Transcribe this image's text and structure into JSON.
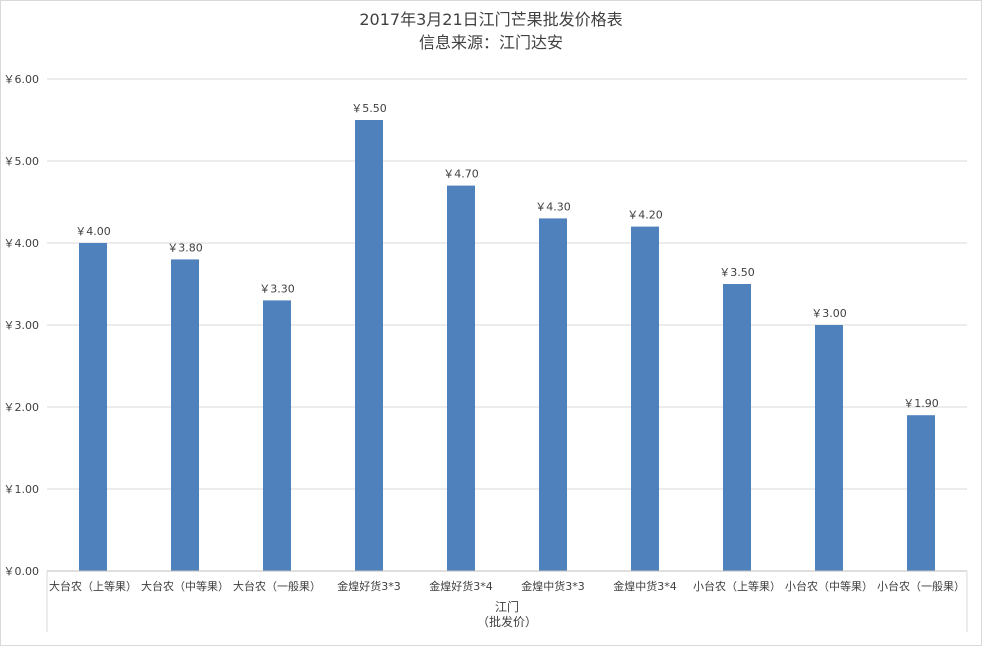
{
  "chart_data": {
    "type": "bar",
    "title": "2017年3月21日江门芒果批发价格表",
    "subtitle": "信息来源：江门达安",
    "currency_prefix": "￥",
    "categories": [
      "大台农（上等果）",
      "大台农（中等果）",
      "大台农（一般果）",
      "金煌好货3*3",
      "金煌好货3*4",
      "金煌中货3*3",
      "金煌中货3*4",
      "小台农（上等果）",
      "小台农（中等果）",
      "小台农（一般果）"
    ],
    "values": [
      4.0,
      3.8,
      3.3,
      5.5,
      4.7,
      4.3,
      4.2,
      3.5,
      3.0,
      1.9
    ],
    "y_ticks": [
      "￥0.00",
      "￥1.00",
      "￥2.00",
      "￥3.00",
      "￥4.00",
      "￥5.00",
      "￥6.00"
    ],
    "ylim": [
      0,
      6
    ],
    "group_label_line1": "江门",
    "group_label_line2": "（批发价）",
    "grid": true,
    "legend": "none",
    "bar_color": "#4f81bd",
    "grid_color": "#d9d9d9"
  }
}
